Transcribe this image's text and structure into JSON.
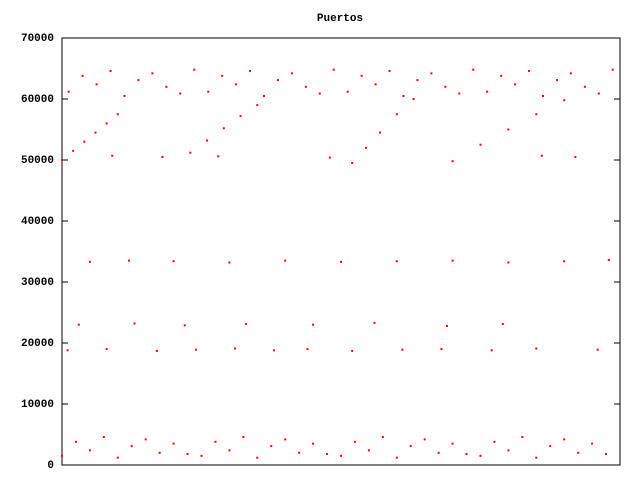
{
  "chart_data": {
    "type": "scatter",
    "title": "Puertos",
    "color": "#ff0000",
    "xlim": [
      0,
      1000
    ],
    "ylim": [
      0,
      70000
    ],
    "yticks": [
      0,
      10000,
      20000,
      30000,
      40000,
      50000,
      60000,
      70000
    ],
    "x": [
      0,
      25,
      50,
      75,
      100,
      125,
      150,
      175,
      200,
      225,
      250,
      275,
      300,
      325,
      350,
      375,
      400,
      425,
      450,
      475,
      500,
      525,
      550,
      575,
      600,
      625,
      650,
      675,
      700,
      725,
      750,
      775,
      800,
      825,
      850,
      875,
      900,
      925,
      950,
      975,
      12,
      37,
      62,
      87,
      112,
      137,
      162,
      187,
      212,
      237,
      262,
      287,
      312,
      337,
      362,
      387,
      412,
      437,
      462,
      487,
      512,
      537,
      562,
      587,
      612,
      637,
      662,
      687,
      712,
      737,
      762,
      787,
      812,
      837,
      862,
      887,
      912,
      937,
      962,
      987,
      0,
      20,
      40,
      60,
      80,
      100,
      230,
      260,
      290,
      320,
      350,
      520,
      545,
      570,
      600,
      630,
      700,
      750,
      800,
      850,
      900,
      90,
      180,
      280,
      480,
      860,
      920,
      50,
      120,
      200,
      300,
      400,
      500,
      600,
      700,
      800,
      900,
      980,
      30,
      130,
      220,
      330,
      450,
      560,
      690,
      790,
      10,
      80,
      170,
      240,
      310,
      380,
      440,
      520,
      610,
      680,
      770,
      850,
      960
    ],
    "values": [
      1500,
      3800,
      2400,
      4600,
      1200,
      3100,
      4200,
      2000,
      3500,
      1800,
      1500,
      3800,
      2400,
      4600,
      1200,
      3100,
      4200,
      2000,
      3500,
      1800,
      1500,
      3800,
      2400,
      4600,
      1200,
      3100,
      4200,
      2000,
      3500,
      1800,
      1500,
      3800,
      2400,
      4600,
      1200,
      3100,
      4200,
      2000,
      3500,
      1800,
      61200,
      63800,
      62400,
      64600,
      60500,
      63100,
      64200,
      62000,
      60900,
      64800,
      61200,
      63800,
      62400,
      64600,
      60500,
      63100,
      64200,
      62000,
      60900,
      64800,
      61200,
      63800,
      62400,
      64600,
      60500,
      63100,
      64200,
      62000,
      60900,
      64800,
      61200,
      63800,
      62400,
      64600,
      60500,
      63100,
      64200,
      62000,
      60900,
      64800,
      50000,
      51500,
      53000,
      54500,
      56000,
      57500,
      51200,
      53200,
      55200,
      57200,
      59000,
      49500,
      52000,
      54500,
      57500,
      60000,
      49800,
      52500,
      55000,
      57500,
      59800,
      50700,
      50500,
      50600,
      50400,
      50700,
      50500,
      33300,
      33500,
      33400,
      33200,
      33500,
      33300,
      33400,
      33500,
      33200,
      33400,
      33600,
      23000,
      23200,
      22900,
      23100,
      23000,
      23300,
      22800,
      23100,
      18800,
      19000,
      18700,
      18900,
      19100,
      18800,
      19000,
      18700,
      18900,
      19000,
      18800,
      19100,
      18900
    ]
  }
}
